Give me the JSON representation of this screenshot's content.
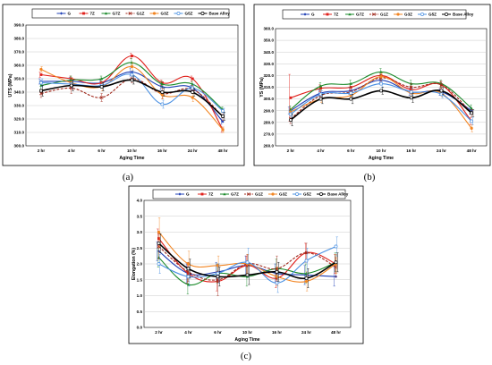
{
  "figure": {
    "panel_labels": [
      "(a)",
      "(b)",
      "(c)"
    ]
  },
  "chart_data": [
    {
      "type": "line",
      "panel": "(a)",
      "title": "",
      "xlabel": "Aging Time",
      "ylabel": "UTS (MPa)",
      "categories": [
        "2 hr",
        "4 hr",
        "6 hr",
        "10 hr",
        "16 hr",
        "24 hr",
        "48 hr"
      ],
      "ylim": [
        300,
        390
      ],
      "yticks": [
        "300.0",
        "310.0",
        "320.0",
        "330.0",
        "340.0",
        "350.0",
        "360.0",
        "370.0",
        "380.0",
        "390.0"
      ],
      "grid": true,
      "legend_position": "top",
      "series": [
        {
          "name": "G",
          "color": "#1f3fb5",
          "dash": "solid",
          "marker": "diamond",
          "values": [
            348,
            348,
            347,
            355,
            344,
            343,
            318
          ],
          "err": [
            2,
            3,
            2,
            3,
            2,
            2,
            2
          ]
        },
        {
          "name": "7Z",
          "color": "#e0201b",
          "dash": "solid",
          "marker": "square",
          "values": [
            353,
            350,
            347,
            367,
            347,
            350,
            312
          ],
          "err": [
            2,
            2,
            3,
            2,
            2,
            2,
            2
          ]
        },
        {
          "name": "G7Z",
          "color": "#1a8a2a",
          "dash": "solid",
          "marker": "triangle",
          "values": [
            345,
            349,
            350,
            362,
            346,
            346,
            327
          ],
          "err": [
            3,
            3,
            2,
            3,
            2,
            2,
            2
          ]
        },
        {
          "name": "G1Z",
          "color": "#a0281b",
          "dash": "dash",
          "marker": "x",
          "values": [
            339,
            343,
            336,
            350,
            339,
            342,
            322
          ],
          "err": [
            3,
            4,
            3,
            3,
            4,
            3,
            3
          ]
        },
        {
          "name": "G3Z",
          "color": "#f28522",
          "dash": "solid",
          "marker": "circle",
          "values": [
            357,
            347,
            344,
            359,
            338,
            336,
            312
          ],
          "err": [
            2,
            3,
            3,
            3,
            3,
            3,
            2
          ]
        },
        {
          "name": "G5Z",
          "color": "#4a90e2",
          "dash": "solid",
          "marker": "circle-open",
          "values": [
            347,
            346,
            345,
            353,
            331,
            343,
            326
          ],
          "err": [
            3,
            3,
            2,
            3,
            3,
            3,
            2
          ]
        },
        {
          "name": "Base Alloy",
          "color": "#000000",
          "dash": "solid",
          "marker": "circle-open",
          "values": [
            341,
            345,
            344,
            349,
            340,
            340,
            322
          ],
          "err": [
            4,
            4,
            3,
            3,
            3,
            3,
            3
          ]
        }
      ]
    },
    {
      "type": "line",
      "panel": "(b)",
      "title": "",
      "xlabel": "Aging Time",
      "ylabel": "YS (MPa)",
      "categories": [
        "2 hr",
        "4 hr",
        "6 hr",
        "10 hr",
        "16 hr",
        "24 hr",
        "48 hr"
      ],
      "ylim": [
        260,
        360
      ],
      "yticks": [
        "260.0",
        "270.0",
        "280.0",
        "290.0",
        "300.0",
        "310.0",
        "320.0",
        "330.0",
        "340.0",
        "350.0",
        "360.0"
      ],
      "grid": true,
      "legend_position": "top",
      "series": [
        {
          "name": "G",
          "color": "#1f3fb5",
          "dash": "solid",
          "marker": "diamond",
          "values": [
            290,
            305,
            307,
            316,
            306,
            306,
            290
          ],
          "err": [
            3,
            3,
            3,
            3,
            3,
            3,
            3
          ]
        },
        {
          "name": "7Z",
          "color": "#e0201b",
          "dash": "solid",
          "marker": "square",
          "values": [
            301,
            309,
            310,
            320,
            308,
            312,
            281
          ],
          "err": [
            20,
            3,
            3,
            3,
            3,
            3,
            3
          ]
        },
        {
          "name": "G7Z",
          "color": "#1a8a2a",
          "dash": "solid",
          "marker": "triangle",
          "values": [
            291,
            311,
            313,
            323,
            313,
            313,
            292
          ],
          "err": [
            3,
            3,
            3,
            3,
            3,
            3,
            3
          ]
        },
        {
          "name": "G1Z",
          "color": "#a0281b",
          "dash": "dash",
          "marker": "x",
          "values": [
            283,
            303,
            306,
            318,
            310,
            312,
            288
          ],
          "err": [
            4,
            4,
            4,
            3,
            3,
            3,
            3
          ]
        },
        {
          "name": "G3Z",
          "color": "#f28522",
          "dash": "solid",
          "marker": "circle",
          "values": [
            289,
            300,
            303,
            319,
            305,
            305,
            275
          ],
          "err": [
            3,
            3,
            3,
            3,
            3,
            3,
            3
          ]
        },
        {
          "name": "G5Z",
          "color": "#4a90e2",
          "dash": "solid",
          "marker": "circle-open",
          "values": [
            287,
            304,
            305,
            313,
            306,
            304,
            281
          ],
          "err": [
            3,
            3,
            3,
            3,
            3,
            3,
            3
          ]
        },
        {
          "name": "Base Alloy",
          "color": "#000000",
          "dash": "solid",
          "marker": "circle-open",
          "values": [
            282,
            300,
            300,
            307,
            301,
            307,
            288
          ],
          "err": [
            5,
            4,
            4,
            3,
            4,
            3,
            3
          ]
        }
      ]
    },
    {
      "type": "line",
      "panel": "(c)",
      "title": "",
      "xlabel": "Aging Time",
      "ylabel": "Elongation (%)",
      "categories": [
        "2 hr",
        "4 hr",
        "6 hr",
        "10 hr",
        "16 hr",
        "24 hr",
        "48 hr"
      ],
      "ylim": [
        0,
        4
      ],
      "yticks": [
        "0.0",
        "0.5",
        "1.0",
        "1.5",
        "2.0",
        "2.5",
        "3.0",
        "3.5",
        "4.0"
      ],
      "grid": true,
      "legend_position": "top",
      "series": [
        {
          "name": "G",
          "color": "#1f3fb5",
          "dash": "solid",
          "marker": "diamond",
          "values": [
            2.4,
            1.7,
            1.75,
            1.95,
            1.7,
            1.65,
            1.6
          ],
          "err": [
            0.3,
            0.3,
            0.3,
            0.3,
            0.3,
            0.3,
            0.3
          ]
        },
        {
          "name": "7Z",
          "color": "#e0201b",
          "dash": "solid",
          "marker": "square",
          "values": [
            2.8,
            1.7,
            1.45,
            1.95,
            1.55,
            2.35,
            2.0
          ],
          "err": [
            0.3,
            0.3,
            0.3,
            0.3,
            0.3,
            0.3,
            0.3
          ]
        },
        {
          "name": "G7Z",
          "color": "#1a8a2a",
          "dash": "solid",
          "marker": "triangle",
          "values": [
            2.2,
            1.35,
            1.7,
            1.6,
            1.85,
            1.7,
            2.05
          ],
          "err": [
            0.3,
            0.3,
            0.3,
            0.3,
            0.3,
            0.3,
            0.3
          ]
        },
        {
          "name": "G1Z",
          "color": "#a0281b",
          "dash": "dash",
          "marker": "x",
          "values": [
            2.55,
            1.75,
            1.5,
            2.0,
            1.85,
            2.35,
            1.9
          ],
          "err": [
            0.4,
            0.3,
            0.5,
            0.3,
            0.4,
            0.3,
            0.3
          ]
        },
        {
          "name": "G3Z",
          "color": "#f28522",
          "dash": "solid",
          "marker": "circle",
          "values": [
            3.0,
            2.0,
            1.95,
            2.0,
            1.6,
            1.45,
            2.0
          ],
          "err": [
            0.45,
            0.4,
            0.3,
            0.3,
            0.3,
            0.3,
            0.3
          ]
        },
        {
          "name": "G5Z",
          "color": "#4a90e2",
          "dash": "solid",
          "marker": "circle-open",
          "values": [
            2.0,
            1.6,
            1.7,
            2.05,
            1.4,
            2.1,
            2.55
          ],
          "err": [
            0.3,
            0.3,
            0.3,
            0.45,
            0.3,
            0.4,
            0.3
          ]
        },
        {
          "name": "Base Alloy",
          "color": "#000000",
          "dash": "solid",
          "marker": "circle-open",
          "values": [
            2.65,
            1.85,
            1.6,
            1.65,
            1.75,
            1.55,
            2.05
          ],
          "err": [
            0.3,
            0.3,
            0.3,
            0.3,
            0.3,
            0.3,
            0.3
          ]
        }
      ]
    }
  ]
}
